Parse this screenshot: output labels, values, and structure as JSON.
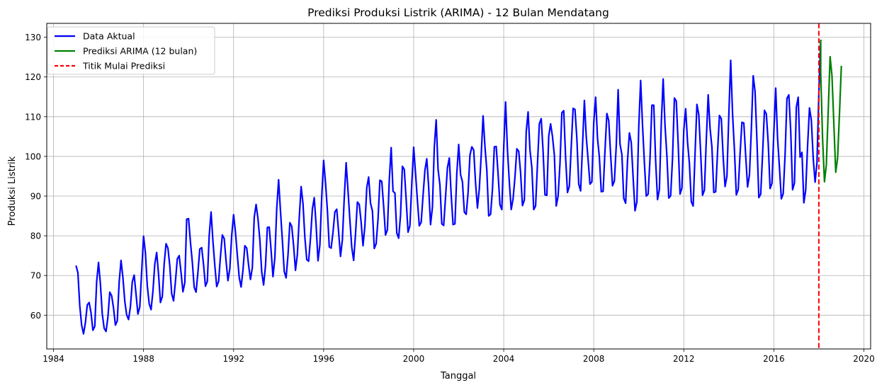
{
  "chart_data": {
    "type": "line",
    "title": "Prediksi Produksi Listrik (ARIMA) - 12 Bulan Mendatang",
    "xlabel": "Tanggal",
    "ylabel": "Produksi Listrik",
    "xlim": [
      1983.7,
      2020.3
    ],
    "ylim": [
      51.5,
      133.5
    ],
    "x_ticks": [
      1984,
      1988,
      1992,
      1996,
      2000,
      2004,
      2008,
      2012,
      2016,
      2020
    ],
    "y_ticks": [
      60,
      70,
      80,
      90,
      100,
      110,
      120,
      130
    ],
    "grid": true,
    "legend_position": "top-left",
    "forecast_start": 2018.0,
    "forecast_start_label": "Titik Mulai Prediksi",
    "forecast_start_color": "#ff0000",
    "series": [
      {
        "name": "Data Aktual",
        "color": "#0000ff",
        "start": 1985.0,
        "step_months": 1,
        "peaks": [
          73.3,
          73.8,
          70.1,
          79.9,
          75.8,
          78.0,
          84.3,
          77.0,
          86.0,
          80.2,
          85.3,
          77.6,
          87.9,
          82.2,
          94.1,
          83.3,
          92.4,
          89.6,
          99.0,
          86.7,
          98.4,
          88.5,
          94.8,
          94.0,
          102.2,
          97.5,
          102.3,
          99.4,
          109.2,
          99.6,
          103.0,
          102.4,
          110.2,
          102.5,
          113.7,
          101.9,
          111.2,
          109.5,
          108.2,
          111.5,
          112.1,
          114.1,
          114.9,
          110.8,
          116.8,
          105.9,
          119.1,
          112.9,
          119.5,
          114.7,
          112.0,
          113.1,
          115.5,
          110.3,
          124.2,
          108.6,
          120.3,
          111.6,
          117.2,
          115.5,
          114.9,
          112.3,
          129.4
        ],
        "troughs": [
          55.3,
          56.2,
          55.9,
          57.5,
          58.9,
          60.3,
          61.4,
          63.2,
          63.6,
          65.9,
          65.8,
          67.3,
          67.2,
          68.7,
          67.1,
          69.0,
          67.6,
          69.7,
          69.4,
          71.3,
          73.6,
          77.1,
          74.7,
          73.8,
          77.5,
          76.8,
          80.2,
          79.4,
          80.9,
          82.8,
          82.6,
          86.0,
          85.4,
          87.0,
          85.0,
          86.6,
          87.5,
          86.6,
          89.9,
          87.5,
          90.3,
          90.9,
          93.0,
          91.1,
          91.1,
          93.8,
          88.2,
          86.3,
          89.1,
          89.4,
          89.3,
          87.5,
          90.2,
          90.9,
          91.9,
          90.3,
          92.3,
          89.6,
          91.9,
          89.3,
          91.4,
          88.3,
          93.5
        ],
        "values": [
          72.5,
          70.7,
          62.4,
          57.5,
          55.3,
          58.1,
          62.6,
          63.2,
          60.6,
          56.2,
          57.2,
          68.4,
          73.3,
          67.9,
          60.3,
          56.7,
          55.9,
          59.5,
          65.8,
          64.9,
          61.8,
          57.5,
          58.6,
          68.3,
          73.8,
          69.5,
          63.5,
          60.1,
          58.9,
          62.1,
          68.4,
          70.1,
          65.3,
          60.3,
          62.1,
          71.0,
          79.9,
          75.7,
          67.4,
          62.9,
          61.4,
          66.0,
          72.9,
          75.8,
          70.3,
          63.2,
          64.7,
          72.9,
          78.0,
          76.9,
          72.4,
          65.4,
          63.6,
          68.5,
          74.2,
          75.0,
          70.7,
          65.9,
          68.2,
          84.2,
          84.3,
          78.4,
          73.4,
          67.0,
          65.8,
          70.9,
          76.7,
          77.0,
          72.7,
          67.3,
          68.5,
          80.1,
          86.0,
          78.6,
          72.5,
          67.2,
          68.5,
          74.8,
          80.2,
          79.3,
          73.6,
          68.7,
          71.7,
          80.1,
          85.3,
          80.9,
          75.1,
          69.5,
          67.1,
          71.3,
          77.5,
          76.9,
          72.6,
          69.0,
          72.0,
          84.6,
          87.9,
          84.3,
          79.0,
          70.9,
          67.6,
          72.4,
          82.1,
          82.2,
          76.3,
          69.7,
          74.5,
          86.8,
          94.1,
          86.2,
          78.9,
          71.0,
          69.4,
          75.1,
          83.3,
          82.4,
          77.5,
          71.3,
          75.3,
          84.5,
          92.4,
          88.1,
          79.6,
          74.0,
          73.6,
          79.4,
          86.7,
          89.6,
          82.6,
          73.7,
          77.7,
          89.9,
          99.0,
          93.4,
          86.5,
          77.2,
          76.9,
          80.9,
          86.0,
          86.7,
          80.9,
          74.8,
          79.0,
          89.6,
          98.4,
          91.3,
          84.0,
          77.1,
          73.8,
          80.4,
          88.5,
          87.9,
          83.4,
          77.5,
          82.5,
          92.1,
          94.8,
          88.2,
          86.3,
          76.8,
          78.0,
          84.2,
          94.0,
          93.7,
          87.4,
          80.2,
          81.5,
          94.0,
          102.2,
          91.2,
          90.8,
          80.7,
          79.4,
          85.2,
          97.5,
          96.7,
          89.1,
          80.9,
          82.5,
          93.1,
          102.3,
          95.7,
          88.9,
          82.5,
          83.4,
          90.1,
          96.5,
          99.4,
          92.2,
          82.8,
          87.2,
          102.3,
          109.2,
          96.8,
          92.8,
          83.0,
          82.6,
          89.8,
          97.1,
          99.6,
          90.3,
          82.8,
          83.0,
          95.7,
          103.0,
          95.4,
          93.6,
          86.0,
          85.4,
          90.8,
          100.3,
          102.4,
          101.6,
          93.3,
          87.0,
          91.9,
          100.3,
          110.2,
          102.5,
          96.5,
          85.0,
          85.4,
          91.6,
          102.4,
          102.5,
          95.6,
          87.8,
          86.6,
          102.1,
          113.7,
          101.6,
          93.5,
          86.6,
          89.3,
          94.8,
          101.9,
          101.3,
          95.9,
          87.6,
          89.0,
          106.2,
          111.2,
          101.6,
          97.2,
          86.6,
          87.5,
          98.1,
          108.2,
          109.5,
          101.2,
          90.3,
          90.2,
          105.1,
          108.2,
          105.0,
          100.3,
          87.5,
          90.0,
          98.2,
          111.0,
          111.5,
          99.7,
          90.9,
          92.5,
          102.4,
          112.1,
          111.8,
          104.5,
          93.0,
          91.3,
          102.5,
          114.1,
          105.0,
          99.1,
          93.0,
          93.6,
          108.5,
          114.9,
          104.6,
          99.8,
          91.1,
          91.2,
          101.5,
          110.8,
          109.0,
          100.3,
          92.6,
          93.8,
          102.7,
          116.8,
          103.1,
          100.5,
          89.4,
          88.2,
          98.9,
          105.9,
          103.5,
          94.6,
          86.3,
          88.6,
          107.5,
          119.1,
          107.9,
          98.4,
          90.0,
          90.5,
          99.5,
          112.9,
          112.9,
          98.8,
          89.1,
          91.7,
          108.2,
          119.5,
          107.7,
          100.1,
          89.5,
          90.1,
          99.5,
          114.7,
          113.9,
          103.2,
          90.5,
          92.0,
          106.6,
          112.0,
          103.6,
          98.2,
          88.6,
          87.5,
          100.6,
          113.1,
          110.5,
          100.8,
          90.2,
          91.5,
          104.2,
          115.5,
          107.1,
          102.3,
          90.9,
          91.1,
          101.1,
          110.3,
          109.5,
          99.8,
          92.4,
          95.0,
          110.3,
          124.2,
          110.7,
          101.6,
          90.3,
          91.6,
          100.6,
          108.6,
          108.4,
          100.2,
          92.3,
          95.3,
          106.7,
          120.3,
          116.3,
          104.0,
          89.6,
          90.5,
          100.5,
          111.6,
          110.7,
          103.4,
          91.9,
          93.2,
          106.0,
          117.2,
          104.5,
          97.2,
          89.3,
          90.6,
          100.4,
          114.6,
          115.5,
          106.4,
          91.6,
          93.3,
          112.4,
          114.9,
          99.8,
          101.0,
          88.3,
          91.6,
          102.7,
          112.2,
          109.1,
          99.5,
          93.5,
          98.5,
          115.9,
          129.4
        ]
      },
      {
        "name": "Prediksi ARIMA (12 bulan)",
        "color": "#008000",
        "start": 2018.083,
        "step_months": 1,
        "peaks": [
          121.0,
          125.1,
          122.8
        ],
        "troughs": [
          93.6,
          96.0
        ],
        "values": [
          121.0,
          104.3,
          93.6,
          97.9,
          111.5,
          125.1,
          120.3,
          108.2,
          96.0,
          99.6,
          110.7,
          122.8
        ]
      }
    ]
  }
}
